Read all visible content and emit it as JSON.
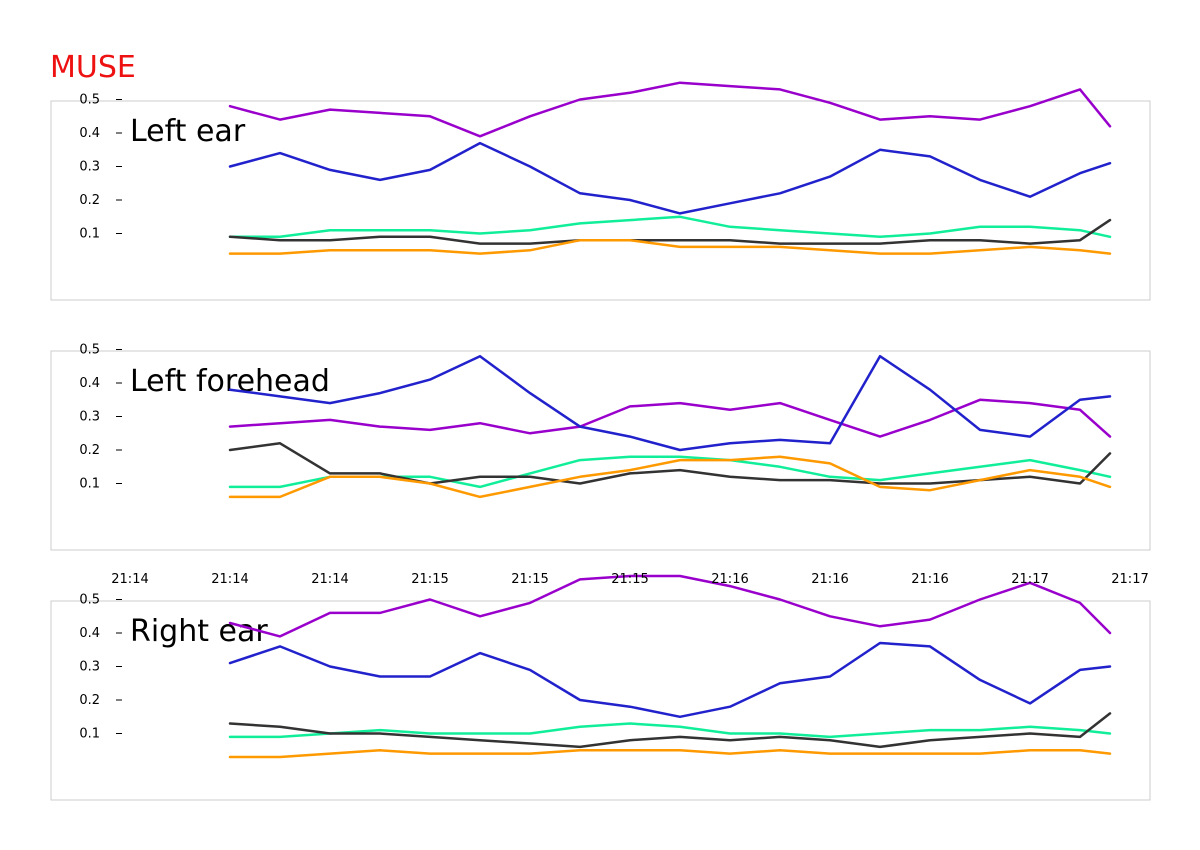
{
  "title": "MUSE",
  "colors": {
    "title": "#ee1111",
    "frame": "#cccccc",
    "series": {
      "violet": "#9900cc",
      "blue": "#2222cc",
      "green": "#11ee99",
      "black": "#333333",
      "orange": "#ff9900"
    }
  },
  "chart_data": {
    "type": "line",
    "grid": false,
    "legend": "none",
    "x_tick_labels": [
      "21:14",
      "21:14",
      "21:14",
      "21:15",
      "21:15",
      "21:15",
      "21:16",
      "21:16",
      "21:16",
      "21:17",
      "21:17"
    ],
    "xlim": [
      0,
      10
    ],
    "x": [
      1.0,
      1.5,
      2.0,
      2.5,
      3.0,
      3.5,
      4.0,
      4.5,
      5.0,
      5.5,
      6.0,
      6.5,
      7.0,
      7.5,
      8.0,
      8.5,
      9.0,
      9.5,
      9.8
    ],
    "panels": [
      {
        "label": "Left ear",
        "ylim": [
          0.0,
          0.55
        ],
        "yticks": [
          "0.1",
          "0.2",
          "0.3",
          "0.4",
          "0.5"
        ],
        "series": [
          {
            "color_key": "violet",
            "values": [
              0.48,
              0.44,
              0.47,
              0.46,
              0.45,
              0.39,
              0.45,
              0.5,
              0.52,
              0.55,
              0.54,
              0.53,
              0.49,
              0.44,
              0.45,
              0.44,
              0.48,
              0.53,
              0.42
            ]
          },
          {
            "color_key": "blue",
            "values": [
              0.3,
              0.34,
              0.29,
              0.26,
              0.29,
              0.37,
              0.3,
              0.22,
              0.2,
              0.16,
              0.19,
              0.22,
              0.27,
              0.35,
              0.33,
              0.26,
              0.21,
              0.28,
              0.31
            ]
          },
          {
            "color_key": "green",
            "values": [
              0.09,
              0.09,
              0.11,
              0.11,
              0.11,
              0.1,
              0.11,
              0.13,
              0.14,
              0.15,
              0.12,
              0.11,
              0.1,
              0.09,
              0.1,
              0.12,
              0.12,
              0.11,
              0.09
            ]
          },
          {
            "color_key": "black",
            "values": [
              0.09,
              0.08,
              0.08,
              0.09,
              0.09,
              0.07,
              0.07,
              0.08,
              0.08,
              0.08,
              0.08,
              0.07,
              0.07,
              0.07,
              0.08,
              0.08,
              0.07,
              0.08,
              0.14
            ]
          },
          {
            "color_key": "orange",
            "values": [
              0.04,
              0.04,
              0.05,
              0.05,
              0.05,
              0.04,
              0.05,
              0.08,
              0.08,
              0.06,
              0.06,
              0.06,
              0.05,
              0.04,
              0.04,
              0.05,
              0.06,
              0.05,
              0.04
            ]
          }
        ]
      },
      {
        "label": "Left forehead",
        "ylim": [
          0.0,
          0.55
        ],
        "yticks": [
          "0.1",
          "0.2",
          "0.3",
          "0.4",
          "0.5"
        ],
        "series": [
          {
            "color_key": "violet",
            "values": [
              0.27,
              0.28,
              0.29,
              0.27,
              0.26,
              0.28,
              0.25,
              0.27,
              0.33,
              0.34,
              0.32,
              0.34,
              0.29,
              0.24,
              0.29,
              0.35,
              0.34,
              0.32,
              0.24
            ]
          },
          {
            "color_key": "blue",
            "values": [
              0.38,
              0.36,
              0.34,
              0.37,
              0.41,
              0.48,
              0.37,
              0.27,
              0.24,
              0.2,
              0.22,
              0.23,
              0.22,
              0.48,
              0.38,
              0.26,
              0.24,
              0.35,
              0.36
            ]
          },
          {
            "color_key": "green",
            "values": [
              0.09,
              0.09,
              0.12,
              0.12,
              0.12,
              0.09,
              0.13,
              0.17,
              0.18,
              0.18,
              0.17,
              0.15,
              0.12,
              0.11,
              0.13,
              0.15,
              0.17,
              0.14,
              0.12
            ]
          },
          {
            "color_key": "black",
            "values": [
              0.2,
              0.22,
              0.13,
              0.13,
              0.1,
              0.12,
              0.12,
              0.1,
              0.13,
              0.14,
              0.12,
              0.11,
              0.11,
              0.1,
              0.1,
              0.11,
              0.12,
              0.1,
              0.19
            ]
          },
          {
            "color_key": "orange",
            "values": [
              0.06,
              0.06,
              0.12,
              0.12,
              0.1,
              0.06,
              0.09,
              0.12,
              0.14,
              0.17,
              0.17,
              0.18,
              0.16,
              0.09,
              0.08,
              0.11,
              0.14,
              0.12,
              0.09
            ]
          }
        ]
      },
      {
        "label": "Right ear",
        "ylim": [
          0.0,
          0.55
        ],
        "yticks": [
          "0.1",
          "0.2",
          "0.3",
          "0.4",
          "0.5"
        ],
        "series": [
          {
            "color_key": "violet",
            "values": [
              0.43,
              0.39,
              0.46,
              0.46,
              0.5,
              0.45,
              0.49,
              0.56,
              0.57,
              0.57,
              0.54,
              0.5,
              0.45,
              0.42,
              0.44,
              0.5,
              0.55,
              0.49,
              0.4
            ]
          },
          {
            "color_key": "blue",
            "values": [
              0.31,
              0.36,
              0.3,
              0.27,
              0.27,
              0.34,
              0.29,
              0.2,
              0.18,
              0.15,
              0.18,
              0.25,
              0.27,
              0.37,
              0.36,
              0.26,
              0.19,
              0.29,
              0.3
            ]
          },
          {
            "color_key": "green",
            "values": [
              0.09,
              0.09,
              0.1,
              0.11,
              0.1,
              0.1,
              0.1,
              0.12,
              0.13,
              0.12,
              0.1,
              0.1,
              0.09,
              0.1,
              0.11,
              0.11,
              0.12,
              0.11,
              0.1
            ]
          },
          {
            "color_key": "black",
            "values": [
              0.13,
              0.12,
              0.1,
              0.1,
              0.09,
              0.08,
              0.07,
              0.06,
              0.08,
              0.09,
              0.08,
              0.09,
              0.08,
              0.06,
              0.08,
              0.09,
              0.1,
              0.09,
              0.16
            ]
          },
          {
            "color_key": "orange",
            "values": [
              0.03,
              0.03,
              0.04,
              0.05,
              0.04,
              0.04,
              0.04,
              0.05,
              0.05,
              0.05,
              0.04,
              0.05,
              0.04,
              0.04,
              0.04,
              0.04,
              0.05,
              0.05,
              0.04
            ]
          }
        ]
      }
    ]
  }
}
